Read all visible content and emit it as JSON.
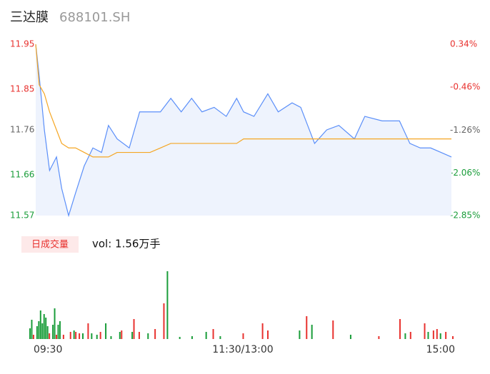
{
  "header": {
    "name": "三达膜",
    "code": "688101.SH"
  },
  "chart_data": [
    {
      "type": "line",
      "x": [
        0,
        2,
        5,
        8,
        12,
        15,
        19,
        23,
        28,
        33,
        38,
        42,
        47,
        54,
        60,
        66,
        72,
        78,
        84,
        90,
        96,
        103,
        110,
        116,
        120,
        126,
        134,
        140,
        148,
        153,
        157,
        161,
        168,
        175,
        184,
        190,
        200,
        204,
        210,
        216,
        222,
        228,
        234,
        240
      ],
      "xlim": [
        0,
        240
      ],
      "series": [
        {
          "color": "#5b8ff9",
          "values": [
            11.95,
            11.88,
            11.76,
            11.67,
            11.7,
            11.63,
            11.57,
            11.62,
            11.68,
            11.72,
            11.71,
            11.77,
            11.74,
            11.72,
            11.8,
            11.8,
            11.8,
            11.83,
            11.8,
            11.83,
            11.8,
            11.81,
            11.79,
            11.83,
            11.8,
            11.79,
            11.84,
            11.8,
            11.82,
            11.81,
            11.77,
            11.73,
            11.76,
            11.77,
            11.74,
            11.79,
            11.78,
            11.78,
            11.78,
            11.73,
            11.72,
            11.72,
            11.71,
            11.7
          ]
        },
        {
          "color": "#f5a623",
          "values": [
            11.95,
            11.86,
            11.84,
            11.8,
            11.76,
            11.73,
            11.72,
            11.72,
            11.71,
            11.7,
            11.7,
            11.7,
            11.71,
            11.71,
            11.71,
            11.71,
            11.72,
            11.73,
            11.73,
            11.73,
            11.73,
            11.73,
            11.73,
            11.73,
            11.74,
            11.74,
            11.74,
            11.74,
            11.74,
            11.74,
            11.74,
            11.74,
            11.74,
            11.74,
            11.74,
            11.74,
            11.74,
            11.74,
            11.74,
            11.74,
            11.74,
            11.74,
            11.74,
            11.74
          ]
        }
      ],
      "ylim": [
        11.57,
        11.95
      ],
      "yticks": [
        11.95,
        11.85,
        11.76,
        11.66,
        11.57
      ],
      "ytick_colors": [
        "#e8322f",
        "#e8322f",
        "#666666",
        "#1a9d3a",
        "#1a9d3a"
      ],
      "y2lim": [
        -2.85,
        0.34
      ],
      "y2ticks": [
        {
          "value": 0.34,
          "label": "0.34%"
        },
        {
          "value": -0.46,
          "label": "-0.46%"
        },
        {
          "value": -1.26,
          "label": "-1.26%"
        },
        {
          "value": -2.06,
          "label": "-2.06%"
        },
        {
          "value": -2.85,
          "label": "-2.85%"
        }
      ],
      "area_color": "#eef3fd"
    },
    {
      "type": "bar",
      "title": "日成交量",
      "subtitle": "vol: 1.56万手",
      "x": [
        0,
        1,
        2,
        4,
        5,
        6,
        7,
        8,
        9,
        10,
        11,
        13,
        14,
        15,
        16,
        17,
        19,
        23,
        25,
        26,
        28,
        30,
        33,
        35,
        38,
        40,
        43,
        46,
        51,
        52,
        58,
        59,
        62,
        67,
        71,
        76,
        78,
        85,
        92,
        100,
        104,
        108,
        121,
        132,
        135,
        153,
        157,
        160,
        172,
        182,
        198,
        210,
        213,
        216,
        224,
        226,
        229,
        231,
        233,
        236,
        240
      ],
      "values": [
        15,
        27,
        6,
        18,
        25,
        40,
        22,
        35,
        30,
        18,
        8,
        20,
        43,
        6,
        20,
        25,
        6,
        10,
        12,
        10,
        8,
        8,
        22,
        8,
        6,
        10,
        22,
        4,
        10,
        12,
        10,
        28,
        10,
        8,
        14,
        50,
        95,
        3,
        4,
        10,
        14,
        4,
        8,
        22,
        12,
        12,
        32,
        20,
        26,
        6,
        4,
        28,
        8,
        10,
        22,
        10,
        12,
        14,
        8,
        10,
        4
      ],
      "colors": [
        "#1a9d3a",
        "#1a9d3a",
        "#e8322f",
        "#1a9d3a",
        "#1a9d3a",
        "#1a9d3a",
        "#1a9d3a",
        "#1a9d3a",
        "#1a9d3a",
        "#1a9d3a",
        "#e8322f",
        "#1a9d3a",
        "#1a9d3a",
        "#e8322f",
        "#1a9d3a",
        "#1a9d3a",
        "#e8322f",
        "#e8322f",
        "#1a9d3a",
        "#e8322f",
        "#e8322f",
        "#1a9d3a",
        "#e8322f",
        "#1a9d3a",
        "#1a9d3a",
        "#e8322f",
        "#1a9d3a",
        "#1a9d3a",
        "#1a9d3a",
        "#e8322f",
        "#1a9d3a",
        "#e8322f",
        "#e8322f",
        "#1a9d3a",
        "#e8322f",
        "#e8322f",
        "#1a9d3a",
        "#1a9d3a",
        "#1a9d3a",
        "#1a9d3a",
        "#e8322f",
        "#1a9d3a",
        "#e8322f",
        "#e8322f",
        "#e8322f",
        "#1a9d3a",
        "#e8322f",
        "#1a9d3a",
        "#e8322f",
        "#1a9d3a",
        "#e8322f",
        "#e8322f",
        "#1a9d3a",
        "#e8322f",
        "#e8322f",
        "#1a9d3a",
        "#e8322f",
        "#e8322f",
        "#1a9d3a",
        "#e8322f",
        "#e8322f"
      ],
      "xlim": [
        0,
        240
      ],
      "ylim": [
        0,
        100
      ],
      "xticks": [
        {
          "value": 0,
          "label": "09:30"
        },
        {
          "value": 120,
          "label": "11:30/13:00"
        },
        {
          "value": 240,
          "label": "15:00"
        }
      ]
    }
  ]
}
